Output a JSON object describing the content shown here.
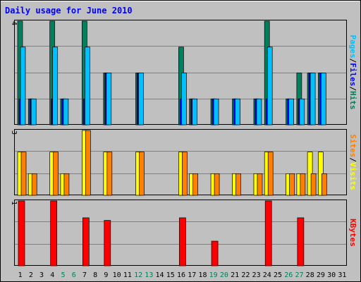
{
  "chart_data": {
    "type": "bar",
    "title": "Daily usage for June 2010",
    "days": [
      "1",
      "2",
      "3",
      "4",
      "5",
      "6",
      "7",
      "8",
      "9",
      "10",
      "11",
      "12",
      "13",
      "14",
      "15",
      "16",
      "17",
      "18",
      "19",
      "20",
      "21",
      "22",
      "23",
      "24",
      "25",
      "26",
      "27",
      "28",
      "29",
      "30",
      "31"
    ],
    "weekend_days": [
      5,
      6,
      12,
      13,
      19,
      20,
      26,
      27
    ],
    "colors": {
      "background": "#c0c0c0",
      "title": "#0000ff",
      "weekend_label": "#00805c",
      "hits": "#00805c",
      "files": "#0000ff",
      "pages": "#00c0ff",
      "visits": "#ffff00",
      "sites": "#ff8000",
      "kbytes": "#ff0000"
    },
    "panels": [
      {
        "id": "hits-files-pages",
        "ymax": 4,
        "ymax_label": "4",
        "legend": [
          {
            "text": "Pages",
            "color": "#00c0ff"
          },
          {
            "text": "/",
            "color": "#000000"
          },
          {
            "text": "Files",
            "color": "#0000ff"
          },
          {
            "text": "/",
            "color": "#000000"
          },
          {
            "text": "Hits",
            "color": "#00805c"
          }
        ],
        "series": [
          {
            "name": "Hits",
            "color": "#00805c",
            "values": [
              4,
              1,
              0,
              4,
              1,
              0,
              4,
              0,
              2,
              0,
              0,
              2,
              0,
              0,
              0,
              3,
              1,
              0,
              1,
              0,
              1,
              0,
              1,
              4,
              0,
              1,
              2,
              2,
              2,
              0,
              0
            ]
          },
          {
            "name": "Files",
            "color": "#0000ff",
            "values": [
              1,
              1,
              0,
              1,
              1,
              0,
              1,
              0,
              2,
              0,
              0,
              2,
              0,
              0,
              0,
              1,
              1,
              0,
              1,
              0,
              1,
              0,
              1,
              1,
              0,
              1,
              1,
              2,
              2,
              0,
              0
            ]
          },
          {
            "name": "Pages",
            "color": "#00c0ff",
            "values": [
              3,
              1,
              0,
              3,
              1,
              0,
              3,
              0,
              2,
              0,
              0,
              2,
              0,
              0,
              0,
              2,
              1,
              0,
              1,
              0,
              1,
              0,
              1,
              3,
              0,
              1,
              1,
              2,
              2,
              0,
              0
            ]
          }
        ]
      },
      {
        "id": "visits-sites",
        "ymax": 3,
        "ymax_label": "3",
        "legend": [
          {
            "text": "Sites",
            "color": "#ff8000"
          },
          {
            "text": "/",
            "color": "#000000"
          },
          {
            "text": "Visits",
            "color": "#ffff00"
          }
        ],
        "series": [
          {
            "name": "Visits",
            "color": "#ffff00",
            "values": [
              2,
              1,
              0,
              2,
              1,
              0,
              3,
              0,
              2,
              0,
              0,
              2,
              0,
              0,
              0,
              2,
              1,
              0,
              1,
              0,
              1,
              0,
              1,
              2,
              0,
              1,
              1,
              2,
              2,
              0,
              0
            ]
          },
          {
            "name": "Sites",
            "color": "#ff8000",
            "values": [
              2,
              1,
              0,
              2,
              1,
              0,
              3,
              0,
              2,
              0,
              0,
              2,
              0,
              0,
              0,
              2,
              1,
              0,
              1,
              0,
              1,
              0,
              1,
              2,
              0,
              1,
              1,
              1,
              1,
              0,
              0
            ]
          }
        ]
      },
      {
        "id": "kbytes",
        "ymax": 1,
        "ymax_label": "1",
        "legend": [
          {
            "text": "KBytes",
            "color": "#ff0000"
          }
        ],
        "series": [
          {
            "name": "KBytes",
            "color": "#ff0000",
            "values": [
              1.0,
              0,
              0,
              1.0,
              0,
              0,
              0.74,
              0,
              0.7,
              0,
              0,
              0,
              0,
              0,
              0,
              0.74,
              0,
              0,
              0.38,
              0,
              0,
              0,
              0,
              1.0,
              0,
              0,
              0.74,
              0,
              0,
              0,
              0
            ]
          }
        ]
      }
    ]
  }
}
